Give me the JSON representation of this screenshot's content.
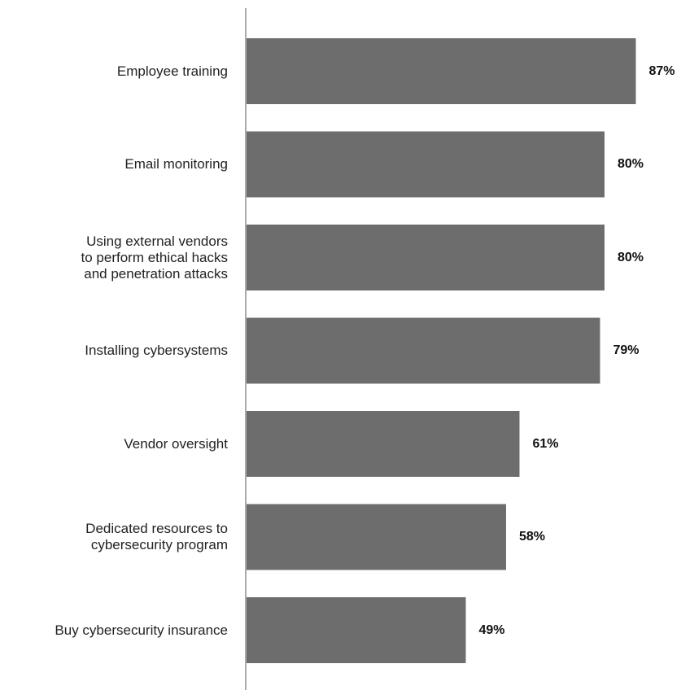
{
  "chart_data": {
    "type": "bar",
    "orientation": "horizontal",
    "categories": [
      "Employee training",
      "Email monitoring",
      "Using external vendors\nto perform ethical hacks\nand penetration attacks",
      "Installing cybersystems",
      "Vendor oversight",
      "Dedicated resources to\ncybersecurity program",
      "Buy cybersecurity insurance"
    ],
    "values": [
      87,
      80,
      80,
      79,
      61,
      58,
      49
    ],
    "value_labels": [
      "87%",
      "80%",
      "80%",
      "79%",
      "61%",
      "58%",
      "49%"
    ],
    "unit": "%",
    "title": "",
    "xlabel": "",
    "ylabel": "",
    "xlim": [
      0,
      100
    ],
    "grid": false,
    "legend": "none",
    "bar_color": "#6d6d6d",
    "axis_color": "#555555"
  }
}
